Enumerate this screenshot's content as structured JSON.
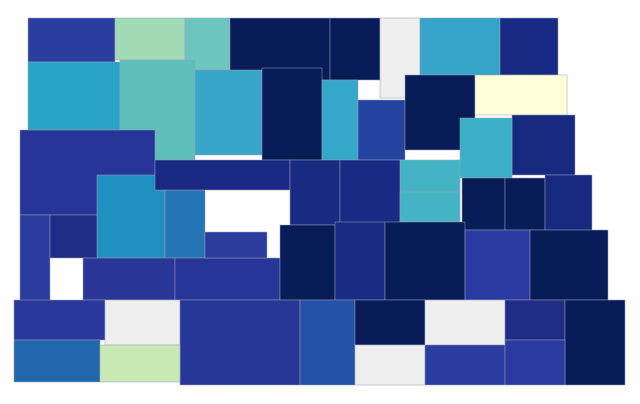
{
  "map": {
    "regions": [
      {
        "color": "#2a3e9f"
      },
      {
        "color": "#a1dab4"
      },
      {
        "color": "#6cc5be"
      },
      {
        "color": "#081d58"
      },
      {
        "color": "#081d58"
      },
      {
        "color": "#eeeeee"
      },
      {
        "color": "#35a4c8"
      },
      {
        "color": "#192a85"
      },
      {
        "color": "#2aa4c6"
      },
      {
        "color": "#5ebeba"
      },
      {
        "color": "#37a5c8"
      },
      {
        "color": "#081d58"
      },
      {
        "color": "#35a8c9"
      },
      {
        "color": "#2443a0"
      },
      {
        "color": "#081d58"
      },
      {
        "color": "#ffffd9"
      },
      {
        "color": "#172a80"
      },
      {
        "color": "#3bb0c8"
      },
      {
        "color": "#44b4c4"
      },
      {
        "color": "#263597"
      },
      {
        "color": "#1e90c0"
      },
      {
        "color": "#2375b3"
      },
      {
        "color": "#1a2a84"
      },
      {
        "color": "#1a2a82"
      },
      {
        "color": "#1a2a84"
      },
      {
        "color": "#44b4c4"
      },
      {
        "color": "#081d58"
      },
      {
        "color": "#081d58"
      },
      {
        "color": "#172a80"
      },
      {
        "color": "#2a3a9d"
      },
      {
        "color": "#1e2c86"
      },
      {
        "color": "#2a3798"
      },
      {
        "color": "#263597"
      },
      {
        "color": "#2b3c9c"
      },
      {
        "color": "#081d58"
      },
      {
        "color": "#1a2b85"
      },
      {
        "color": "#081d58"
      },
      {
        "color": "#2a3aa0"
      },
      {
        "color": "#081d58"
      },
      {
        "color": "#2a389b"
      },
      {
        "color": "#eeeeee"
      },
      {
        "color": "#273798"
      },
      {
        "color": "#2352a6"
      },
      {
        "color": "#081d58"
      },
      {
        "color": "#eeeeee"
      },
      {
        "color": "#1f2d88"
      },
      {
        "color": "#081d58"
      },
      {
        "color": "#2266ad"
      },
      {
        "color": "#c7e9b4"
      },
      {
        "color": "#eeeeee"
      },
      {
        "color": "#2b3ea0"
      },
      {
        "color": "#2a3aa0"
      }
    ]
  }
}
